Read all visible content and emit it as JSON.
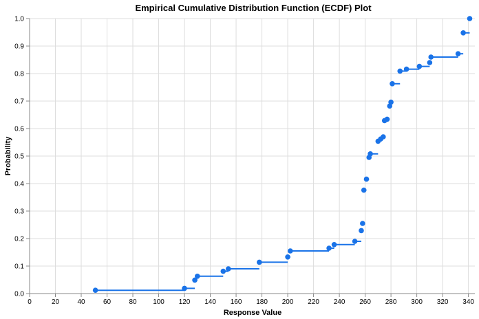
{
  "chart_data": {
    "type": "line",
    "title": "Empirical Cumulative Distribution Function (ECDF) Plot",
    "xlabel": "Response Value",
    "ylabel": "Probability",
    "xlim": [
      0,
      345
    ],
    "ylim": [
      0,
      1.0
    ],
    "xticks": [
      0,
      20,
      40,
      60,
      80,
      100,
      120,
      140,
      160,
      180,
      200,
      220,
      240,
      260,
      280,
      300,
      320,
      340
    ],
    "yticks": [
      0.0,
      0.1,
      0.2,
      0.3,
      0.4,
      0.5,
      0.6,
      0.7,
      0.8,
      0.9,
      1.0
    ],
    "xtick_labels": [
      "0",
      "20",
      "40",
      "60",
      "80",
      "100",
      "120",
      "140",
      "160",
      "180",
      "200",
      "220",
      "240",
      "260",
      "280",
      "300",
      "320",
      "340"
    ],
    "ytick_labels": [
      "0.0",
      "0.1",
      "0.2",
      "0.3",
      "0.4",
      "0.5",
      "0.6",
      "0.7",
      "0.8",
      "0.9",
      "1.0"
    ],
    "grid": true,
    "color": "#1a73e8",
    "points": [
      {
        "x": 51,
        "y": 0.012
      },
      {
        "x": 120,
        "y": 0.019
      },
      {
        "x": 128,
        "y": 0.049
      },
      {
        "x": 130,
        "y": 0.063
      },
      {
        "x": 150,
        "y": 0.081
      },
      {
        "x": 154,
        "y": 0.09
      },
      {
        "x": 178,
        "y": 0.114
      },
      {
        "x": 200,
        "y": 0.133
      },
      {
        "x": 202,
        "y": 0.155
      },
      {
        "x": 232,
        "y": 0.165
      },
      {
        "x": 236,
        "y": 0.178
      },
      {
        "x": 252,
        "y": 0.19
      },
      {
        "x": 257,
        "y": 0.229
      },
      {
        "x": 258,
        "y": 0.255
      },
      {
        "x": 259,
        "y": 0.376
      },
      {
        "x": 261,
        "y": 0.416
      },
      {
        "x": 263,
        "y": 0.495
      },
      {
        "x": 264,
        "y": 0.508
      },
      {
        "x": 270,
        "y": 0.554
      },
      {
        "x": 272,
        "y": 0.562
      },
      {
        "x": 274,
        "y": 0.57
      },
      {
        "x": 275,
        "y": 0.629
      },
      {
        "x": 277,
        "y": 0.634
      },
      {
        "x": 279,
        "y": 0.682
      },
      {
        "x": 280,
        "y": 0.696
      },
      {
        "x": 281,
        "y": 0.763
      },
      {
        "x": 287,
        "y": 0.809
      },
      {
        "x": 292,
        "y": 0.816
      },
      {
        "x": 302,
        "y": 0.826
      },
      {
        "x": 310,
        "y": 0.84
      },
      {
        "x": 311,
        "y": 0.86
      },
      {
        "x": 332,
        "y": 0.872
      },
      {
        "x": 336,
        "y": 0.948
      },
      {
        "x": 341,
        "y": 1.0
      }
    ]
  }
}
